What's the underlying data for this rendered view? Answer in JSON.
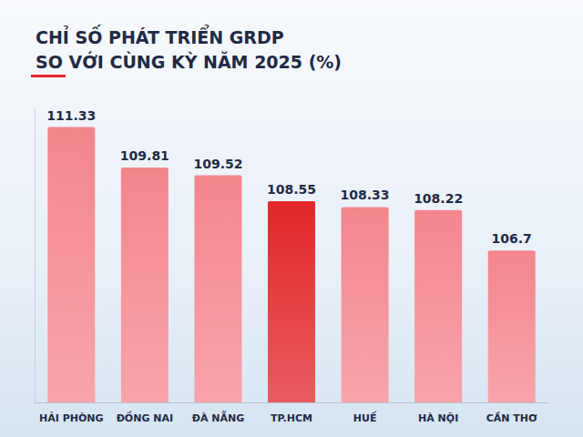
{
  "chart_data": {
    "type": "bar",
    "title": "CHỈ SỐ PHÁT TRIỂN GRDP\nSO VỚI CÙNG KỲ NĂM 2025 (%)",
    "categories": [
      "HẢI PHÒNG",
      "ĐỒNG NAI",
      "ĐÀ NẴNG",
      "TP.HCM",
      "HUẾ",
      "HÀ NỘI",
      "CẦN THƠ"
    ],
    "values": [
      111.33,
      109.81,
      109.52,
      108.55,
      108.33,
      108.22,
      106.7
    ],
    "colors": [
      "#f4858d",
      "#f4858d",
      "#f4858d",
      "#e3262b",
      "#f4858d",
      "#f4858d",
      "#f4858d"
    ],
    "ylim": [
      101,
      112
    ],
    "grid": false,
    "data_labels": true,
    "tick_labels": "x"
  }
}
